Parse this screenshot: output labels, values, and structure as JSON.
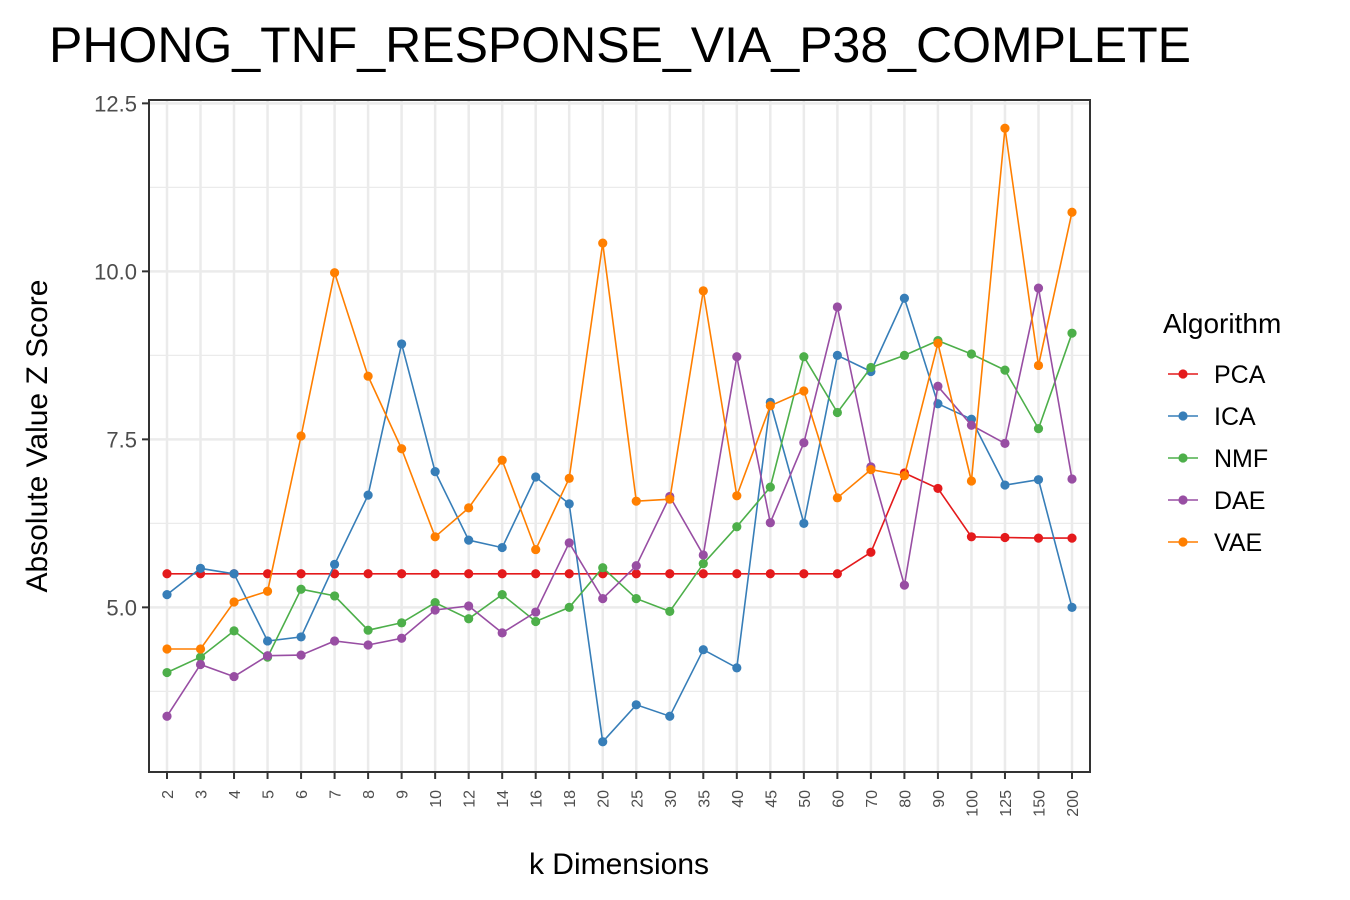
{
  "chart_data": {
    "type": "line",
    "title": "PHONG_TNF_RESPONSE_VIA_P38_COMPLETE",
    "xlabel": "k Dimensions",
    "ylabel": "Absolute Value Z Score",
    "ylim": [
      2.55,
      12.55
    ],
    "yticks": [
      5.0,
      7.5,
      10.0,
      12.5
    ],
    "ytick_labels": [
      "5.0",
      "7.5",
      "10.0",
      "12.5"
    ],
    "categories": [
      "2",
      "3",
      "4",
      "5",
      "6",
      "7",
      "8",
      "9",
      "10",
      "12",
      "14",
      "16",
      "18",
      "20",
      "25",
      "30",
      "35",
      "40",
      "45",
      "50",
      "60",
      "70",
      "80",
      "90",
      "100",
      "125",
      "150",
      "200"
    ],
    "grid": true,
    "legend_title": "Algorithm",
    "legend_position": "right",
    "series": [
      {
        "name": "PCA",
        "color": "#e41a1c",
        "values": [
          5.5,
          5.5,
          5.5,
          5.5,
          5.5,
          5.5,
          5.5,
          5.5,
          5.5,
          5.5,
          5.5,
          5.5,
          5.5,
          5.5,
          5.5,
          5.5,
          5.5,
          5.5,
          5.5,
          5.5,
          5.5,
          5.82,
          7.0,
          6.77,
          6.05,
          6.04,
          6.03,
          6.03
        ]
      },
      {
        "name": "ICA",
        "color": "#377eb8",
        "values": [
          5.19,
          5.58,
          5.5,
          4.5,
          4.56,
          5.64,
          6.67,
          8.92,
          7.02,
          6.0,
          5.89,
          6.94,
          6.54,
          3.0,
          3.55,
          3.38,
          4.37,
          4.1,
          8.05,
          6.25,
          8.75,
          8.51,
          9.6,
          8.03,
          7.8,
          6.82,
          6.9,
          5.0
        ]
      },
      {
        "name": "NMF",
        "color": "#4daf4a",
        "values": [
          4.03,
          4.26,
          4.65,
          4.26,
          5.27,
          5.17,
          4.66,
          4.77,
          5.07,
          4.83,
          5.19,
          4.79,
          5.0,
          5.59,
          5.13,
          4.94,
          5.65,
          6.2,
          6.79,
          8.73,
          7.9,
          8.57,
          8.75,
          8.97,
          8.77,
          8.53,
          7.66,
          9.08
        ]
      },
      {
        "name": "DAE",
        "color": "#984ea3",
        "values": [
          3.38,
          4.15,
          3.97,
          4.28,
          4.29,
          4.5,
          4.44,
          4.54,
          4.96,
          5.02,
          4.62,
          4.93,
          5.96,
          5.13,
          5.62,
          6.65,
          5.78,
          8.73,
          6.26,
          7.45,
          9.47,
          7.09,
          5.33,
          8.29,
          7.71,
          7.44,
          9.75,
          6.91
        ]
      },
      {
        "name": "VAE",
        "color": "#ff7f00",
        "values": [
          4.38,
          4.38,
          5.08,
          5.24,
          7.55,
          9.98,
          8.44,
          7.36,
          6.05,
          6.48,
          7.19,
          5.86,
          6.92,
          10.42,
          6.58,
          6.61,
          9.71,
          6.66,
          8.0,
          8.22,
          6.63,
          7.05,
          6.96,
          8.93,
          6.88,
          12.13,
          8.6,
          10.88
        ]
      }
    ]
  }
}
